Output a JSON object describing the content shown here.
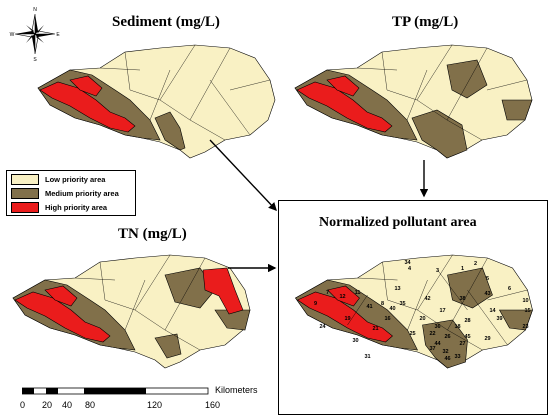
{
  "compass": {
    "n": "N",
    "s": "S",
    "e": "E",
    "w": "W",
    "icon": "compass-rose-icon"
  },
  "titles": {
    "sediment": "Sediment (mg/L)",
    "tp": "TP (mg/L)",
    "tn": "TN (mg/L)",
    "normalized": "Normalized pollutant area"
  },
  "legend": [
    {
      "label": "Low priority area",
      "color": "#f9f1c4"
    },
    {
      "label": "Medium priority area",
      "color": "#81704a"
    },
    {
      "label": "High priority area",
      "color": "#ea1c1c"
    }
  ],
  "scale_bar": {
    "unit": "Kilometers",
    "ticks": [
      "0",
      "20",
      "40",
      "80",
      "120",
      "160"
    ]
  },
  "subbasin_labels": [
    "1",
    "2",
    "3",
    "4",
    "5",
    "6",
    "7",
    "8",
    "9",
    "10",
    "11",
    "12",
    "13",
    "14",
    "15",
    "16",
    "17",
    "18",
    "19",
    "20",
    "21",
    "22",
    "23",
    "24",
    "25",
    "26",
    "27",
    "28",
    "29",
    "30",
    "31",
    "32",
    "33",
    "34",
    "35",
    "36",
    "37",
    "38",
    "39",
    "40",
    "41",
    "42",
    "43",
    "44",
    "45",
    "46"
  ],
  "colors": {
    "outline": "#000000",
    "arrow": "#000000"
  }
}
